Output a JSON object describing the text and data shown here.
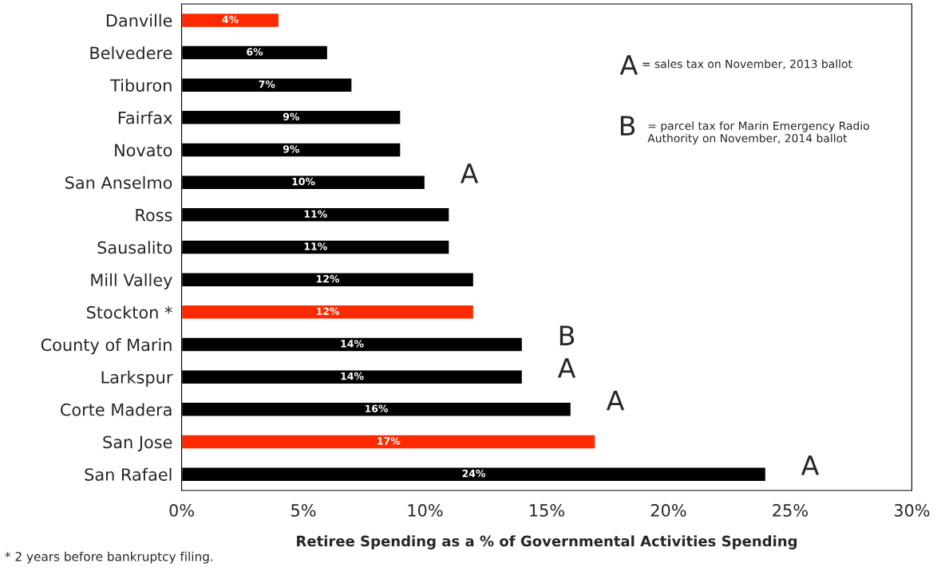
{
  "chart_data": {
    "type": "bar",
    "orientation": "horizontal",
    "xlabel": "Retiree Spending as a % of Governmental Activities Spending",
    "categories": [
      "Danville",
      "Belvedere",
      "Tiburon",
      "Fairfax",
      "Novato",
      "San Anselmo",
      "Ross",
      "Sausalito",
      "Mill Valley",
      "Stockton *",
      "County of Marin",
      "Larkspur",
      "Corte Madera",
      "San Jose",
      "San Rafael"
    ],
    "values": [
      4,
      6,
      7,
      9,
      9,
      10,
      11,
      11,
      12,
      12,
      14,
      14,
      16,
      17,
      24
    ],
    "value_labels": [
      "4%",
      "6%",
      "7%",
      "9%",
      "9%",
      "10%",
      "11%",
      "11%",
      "12%",
      "12%",
      "14%",
      "14%",
      "16%",
      "17%",
      "24%"
    ],
    "colors": [
      "#ff2a00",
      "#000000",
      "#000000",
      "#000000",
      "#000000",
      "#000000",
      "#000000",
      "#000000",
      "#000000",
      "#ff2a00",
      "#000000",
      "#000000",
      "#000000",
      "#ff2a00",
      "#000000"
    ],
    "xlim": [
      0,
      30
    ],
    "xticks": [
      {
        "value": 0,
        "label": "0%"
      },
      {
        "value": 5,
        "label": "5%"
      },
      {
        "value": 10,
        "label": "10%"
      },
      {
        "value": 15,
        "label": "15%"
      },
      {
        "value": 20,
        "label": "20%"
      },
      {
        "value": 25,
        "label": "25%"
      },
      {
        "value": 30,
        "label": "30%"
      }
    ],
    "grid": false,
    "legend": false,
    "annotations": [
      {
        "text": "A",
        "x": 10,
        "y": "San Anselmo"
      },
      {
        "text": "B",
        "x": 14,
        "y": "County of Marin"
      },
      {
        "text": "A",
        "x": 14,
        "y": "Larkspur"
      },
      {
        "text": "A",
        "x": 16,
        "y": "Corte Madera"
      },
      {
        "text": "A",
        "x": 24,
        "y": "San Rafael"
      },
      "A",
      "= sales tax on November, 2013 ballot",
      "B",
      "= parcel tax for Marin Emergency Radio Authority on November, 2014 ballot",
      "* 2 years before bankruptcy filing."
    ]
  }
}
